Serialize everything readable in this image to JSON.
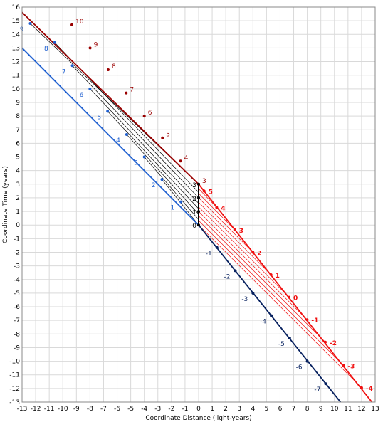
{
  "chart_data": {
    "type": "line",
    "title": "",
    "xlabel": "Coordinate Distance (light-years)",
    "ylabel": "Coordinate Time (years)",
    "xlim": [
      -13,
      13
    ],
    "ylim": [
      -13,
      16
    ],
    "grid": true,
    "x_ticks": [
      -13,
      -12,
      -11,
      -10,
      -9,
      -8,
      -7,
      -6,
      -5,
      -4,
      -3,
      -2,
      -1,
      0,
      1,
      2,
      3,
      4,
      5,
      6,
      7,
      8,
      9,
      10,
      11,
      12,
      13
    ],
    "y_ticks": [
      -13,
      -12,
      -11,
      -10,
      -9,
      -8,
      -7,
      -6,
      -5,
      -4,
      -3,
      -2,
      -1,
      0,
      1,
      2,
      3,
      4,
      5,
      6,
      7,
      8,
      9,
      10,
      11,
      12,
      13,
      14,
      15,
      16
    ],
    "colors": {
      "dark_red": "#9a0000",
      "red": "#f01010",
      "blue": "#1e5fd0",
      "navy": "#06205e",
      "black": "#000000",
      "grid": "#d9d9d9"
    },
    "series": [
      {
        "color": "#9a0000",
        "line": [
          [
            -13.4,
            16.0
          ],
          [
            0.0,
            3.0
          ]
        ],
        "points": [
          {
            "x": -9.33,
            "y": 14.7,
            "label": "10"
          },
          {
            "x": -7.99,
            "y": 13.0,
            "label": "9"
          },
          {
            "x": -6.66,
            "y": 11.4,
            "label": "8"
          },
          {
            "x": -5.33,
            "y": 9.7,
            "label": "7"
          },
          {
            "x": -4.0,
            "y": 8.0,
            "label": "6"
          },
          {
            "x": -2.66,
            "y": 6.4,
            "label": "5"
          },
          {
            "x": -1.33,
            "y": 4.7,
            "label": "4"
          },
          {
            "x": 0.0,
            "y": 3.0,
            "label": "3"
          }
        ]
      },
      {
        "color": "#f01010",
        "line": [
          [
            0.0,
            3.0
          ],
          [
            13.0,
            -13.3
          ]
        ],
        "points": [
          {
            "x": 0.4,
            "y": 2.5,
            "label": "5"
          },
          {
            "x": 1.33,
            "y": 1.3,
            "label": "4"
          },
          {
            "x": 2.66,
            "y": -0.35,
            "label": "3"
          },
          {
            "x": 4.0,
            "y": -2.0,
            "label": "2"
          },
          {
            "x": 5.33,
            "y": -3.65,
            "label": "1"
          },
          {
            "x": 6.66,
            "y": -5.3,
            "label": "0"
          },
          {
            "x": 7.99,
            "y": -6.95,
            "label": "-1"
          },
          {
            "x": 9.33,
            "y": -8.6,
            "label": "-2"
          },
          {
            "x": 10.66,
            "y": -10.3,
            "label": "-3"
          },
          {
            "x": 12.0,
            "y": -11.95,
            "label": "-4"
          }
        ]
      },
      {
        "color": "#1e5fd0",
        "line": [
          [
            -16.0,
            16.0
          ],
          [
            0.0,
            0.0
          ]
        ],
        "points": [
          {
            "x": -12.4,
            "y": 14.8,
            "label": "9"
          },
          {
            "x": -10.6,
            "y": 13.4,
            "label": "8"
          },
          {
            "x": -9.3,
            "y": 11.7,
            "label": "7"
          },
          {
            "x": -8.0,
            "y": 10.0,
            "label": "6"
          },
          {
            "x": -6.7,
            "y": 8.35,
            "label": "5"
          },
          {
            "x": -5.3,
            "y": 6.65,
            "label": "4"
          },
          {
            "x": -4.0,
            "y": 5.0,
            "label": "3"
          },
          {
            "x": -2.7,
            "y": 3.35,
            "label": "2"
          },
          {
            "x": -1.3,
            "y": 1.7,
            "label": "1"
          }
        ]
      },
      {
        "color": "#06205e",
        "line": [
          [
            0.0,
            0.0
          ],
          [
            10.45,
            -13.0
          ]
        ],
        "points": [
          {
            "x": 1.35,
            "y": -1.65,
            "label": "-1"
          },
          {
            "x": 2.7,
            "y": -3.35,
            "label": "-2"
          },
          {
            "x": 4.0,
            "y": -5.0,
            "label": "-3"
          },
          {
            "x": 5.35,
            "y": -6.65,
            "label": "-4"
          },
          {
            "x": 6.7,
            "y": -8.3,
            "label": "-5"
          },
          {
            "x": 8.0,
            "y": -10.0,
            "label": "-6"
          },
          {
            "x": 9.35,
            "y": -11.65,
            "label": "-7"
          }
        ]
      },
      {
        "color": "#000000",
        "line": [
          [
            0.0,
            0.0
          ],
          [
            0.0,
            3.0
          ]
        ],
        "points": [
          {
            "x": 0.0,
            "y": 0.0,
            "label": "0"
          },
          {
            "x": 0.0,
            "y": 1.0,
            "label": "1"
          },
          {
            "x": 0.0,
            "y": 2.0,
            "label": "2"
          },
          {
            "x": 0.0,
            "y": 3.0,
            "label": "3"
          }
        ]
      }
    ],
    "black_links": [
      [
        [
          -12.4,
          14.8
        ],
        [
          0.0,
          3.0
        ]
      ],
      [
        [
          -10.6,
          13.4
        ],
        [
          0.0,
          2.4
        ]
      ],
      [
        [
          -9.3,
          11.7
        ],
        [
          0.0,
          2.0
        ]
      ],
      [
        [
          -8.0,
          10.0
        ],
        [
          0.0,
          1.6
        ]
      ],
      [
        [
          -6.7,
          8.35
        ],
        [
          0.0,
          1.2
        ]
      ],
      [
        [
          -5.3,
          6.65
        ],
        [
          0.0,
          0.8
        ]
      ],
      [
        [
          -4.0,
          5.0
        ],
        [
          0.0,
          0.4
        ]
      ],
      [
        [
          -2.7,
          3.35
        ],
        [
          0.0,
          0.0
        ]
      ]
    ],
    "red_links": [
      [
        [
          0.0,
          0.0
        ],
        [
          12.0,
          -11.95
        ]
      ],
      [
        [
          0.0,
          0.33
        ],
        [
          10.66,
          -10.3
        ]
      ],
      [
        [
          0.0,
          0.67
        ],
        [
          9.33,
          -8.6
        ]
      ],
      [
        [
          0.0,
          1.0
        ],
        [
          7.99,
          -6.95
        ]
      ],
      [
        [
          0.0,
          1.33
        ],
        [
          6.66,
          -5.3
        ]
      ],
      [
        [
          0.0,
          1.67
        ],
        [
          5.33,
          -3.65
        ]
      ],
      [
        [
          0.0,
          2.0
        ],
        [
          4.0,
          -2.0
        ]
      ],
      [
        [
          0.0,
          2.33
        ],
        [
          2.66,
          -0.35
        ]
      ],
      [
        [
          0.0,
          2.67
        ],
        [
          1.33,
          1.3
        ]
      ],
      [
        [
          0.0,
          3.0
        ],
        [
          0.4,
          2.5
        ]
      ]
    ]
  }
}
